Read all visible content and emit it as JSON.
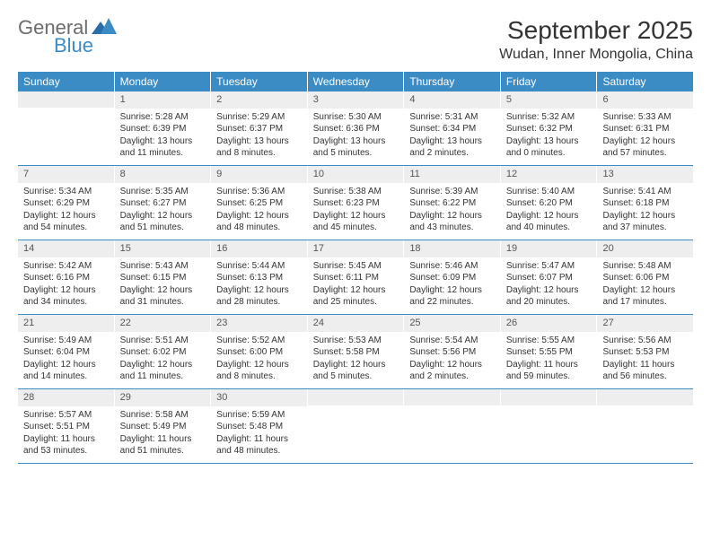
{
  "logo": {
    "text1": "General",
    "text2": "Blue"
  },
  "title": "September 2025",
  "location": "Wudan, Inner Mongolia, China",
  "calendar": {
    "header_bg": "#3b8bc4",
    "daynum_bg": "#eeeeee",
    "border_color": "#3b8bc4",
    "weekdays": [
      "Sunday",
      "Monday",
      "Tuesday",
      "Wednesday",
      "Thursday",
      "Friday",
      "Saturday"
    ],
    "weeks": [
      [
        {
          "num": "",
          "sunrise": "",
          "sunset": "",
          "daylight": ""
        },
        {
          "num": "1",
          "sunrise": "Sunrise: 5:28 AM",
          "sunset": "Sunset: 6:39 PM",
          "daylight": "Daylight: 13 hours and 11 minutes."
        },
        {
          "num": "2",
          "sunrise": "Sunrise: 5:29 AM",
          "sunset": "Sunset: 6:37 PM",
          "daylight": "Daylight: 13 hours and 8 minutes."
        },
        {
          "num": "3",
          "sunrise": "Sunrise: 5:30 AM",
          "sunset": "Sunset: 6:36 PM",
          "daylight": "Daylight: 13 hours and 5 minutes."
        },
        {
          "num": "4",
          "sunrise": "Sunrise: 5:31 AM",
          "sunset": "Sunset: 6:34 PM",
          "daylight": "Daylight: 13 hours and 2 minutes."
        },
        {
          "num": "5",
          "sunrise": "Sunrise: 5:32 AM",
          "sunset": "Sunset: 6:32 PM",
          "daylight": "Daylight: 13 hours and 0 minutes."
        },
        {
          "num": "6",
          "sunrise": "Sunrise: 5:33 AM",
          "sunset": "Sunset: 6:31 PM",
          "daylight": "Daylight: 12 hours and 57 minutes."
        }
      ],
      [
        {
          "num": "7",
          "sunrise": "Sunrise: 5:34 AM",
          "sunset": "Sunset: 6:29 PM",
          "daylight": "Daylight: 12 hours and 54 minutes."
        },
        {
          "num": "8",
          "sunrise": "Sunrise: 5:35 AM",
          "sunset": "Sunset: 6:27 PM",
          "daylight": "Daylight: 12 hours and 51 minutes."
        },
        {
          "num": "9",
          "sunrise": "Sunrise: 5:36 AM",
          "sunset": "Sunset: 6:25 PM",
          "daylight": "Daylight: 12 hours and 48 minutes."
        },
        {
          "num": "10",
          "sunrise": "Sunrise: 5:38 AM",
          "sunset": "Sunset: 6:23 PM",
          "daylight": "Daylight: 12 hours and 45 minutes."
        },
        {
          "num": "11",
          "sunrise": "Sunrise: 5:39 AM",
          "sunset": "Sunset: 6:22 PM",
          "daylight": "Daylight: 12 hours and 43 minutes."
        },
        {
          "num": "12",
          "sunrise": "Sunrise: 5:40 AM",
          "sunset": "Sunset: 6:20 PM",
          "daylight": "Daylight: 12 hours and 40 minutes."
        },
        {
          "num": "13",
          "sunrise": "Sunrise: 5:41 AM",
          "sunset": "Sunset: 6:18 PM",
          "daylight": "Daylight: 12 hours and 37 minutes."
        }
      ],
      [
        {
          "num": "14",
          "sunrise": "Sunrise: 5:42 AM",
          "sunset": "Sunset: 6:16 PM",
          "daylight": "Daylight: 12 hours and 34 minutes."
        },
        {
          "num": "15",
          "sunrise": "Sunrise: 5:43 AM",
          "sunset": "Sunset: 6:15 PM",
          "daylight": "Daylight: 12 hours and 31 minutes."
        },
        {
          "num": "16",
          "sunrise": "Sunrise: 5:44 AM",
          "sunset": "Sunset: 6:13 PM",
          "daylight": "Daylight: 12 hours and 28 minutes."
        },
        {
          "num": "17",
          "sunrise": "Sunrise: 5:45 AM",
          "sunset": "Sunset: 6:11 PM",
          "daylight": "Daylight: 12 hours and 25 minutes."
        },
        {
          "num": "18",
          "sunrise": "Sunrise: 5:46 AM",
          "sunset": "Sunset: 6:09 PM",
          "daylight": "Daylight: 12 hours and 22 minutes."
        },
        {
          "num": "19",
          "sunrise": "Sunrise: 5:47 AM",
          "sunset": "Sunset: 6:07 PM",
          "daylight": "Daylight: 12 hours and 20 minutes."
        },
        {
          "num": "20",
          "sunrise": "Sunrise: 5:48 AM",
          "sunset": "Sunset: 6:06 PM",
          "daylight": "Daylight: 12 hours and 17 minutes."
        }
      ],
      [
        {
          "num": "21",
          "sunrise": "Sunrise: 5:49 AM",
          "sunset": "Sunset: 6:04 PM",
          "daylight": "Daylight: 12 hours and 14 minutes."
        },
        {
          "num": "22",
          "sunrise": "Sunrise: 5:51 AM",
          "sunset": "Sunset: 6:02 PM",
          "daylight": "Daylight: 12 hours and 11 minutes."
        },
        {
          "num": "23",
          "sunrise": "Sunrise: 5:52 AM",
          "sunset": "Sunset: 6:00 PM",
          "daylight": "Daylight: 12 hours and 8 minutes."
        },
        {
          "num": "24",
          "sunrise": "Sunrise: 5:53 AM",
          "sunset": "Sunset: 5:58 PM",
          "daylight": "Daylight: 12 hours and 5 minutes."
        },
        {
          "num": "25",
          "sunrise": "Sunrise: 5:54 AM",
          "sunset": "Sunset: 5:56 PM",
          "daylight": "Daylight: 12 hours and 2 minutes."
        },
        {
          "num": "26",
          "sunrise": "Sunrise: 5:55 AM",
          "sunset": "Sunset: 5:55 PM",
          "daylight": "Daylight: 11 hours and 59 minutes."
        },
        {
          "num": "27",
          "sunrise": "Sunrise: 5:56 AM",
          "sunset": "Sunset: 5:53 PM",
          "daylight": "Daylight: 11 hours and 56 minutes."
        }
      ],
      [
        {
          "num": "28",
          "sunrise": "Sunrise: 5:57 AM",
          "sunset": "Sunset: 5:51 PM",
          "daylight": "Daylight: 11 hours and 53 minutes."
        },
        {
          "num": "29",
          "sunrise": "Sunrise: 5:58 AM",
          "sunset": "Sunset: 5:49 PM",
          "daylight": "Daylight: 11 hours and 51 minutes."
        },
        {
          "num": "30",
          "sunrise": "Sunrise: 5:59 AM",
          "sunset": "Sunset: 5:48 PM",
          "daylight": "Daylight: 11 hours and 48 minutes."
        },
        {
          "num": "",
          "sunrise": "",
          "sunset": "",
          "daylight": ""
        },
        {
          "num": "",
          "sunrise": "",
          "sunset": "",
          "daylight": ""
        },
        {
          "num": "",
          "sunrise": "",
          "sunset": "",
          "daylight": ""
        },
        {
          "num": "",
          "sunrise": "",
          "sunset": "",
          "daylight": ""
        }
      ]
    ]
  }
}
